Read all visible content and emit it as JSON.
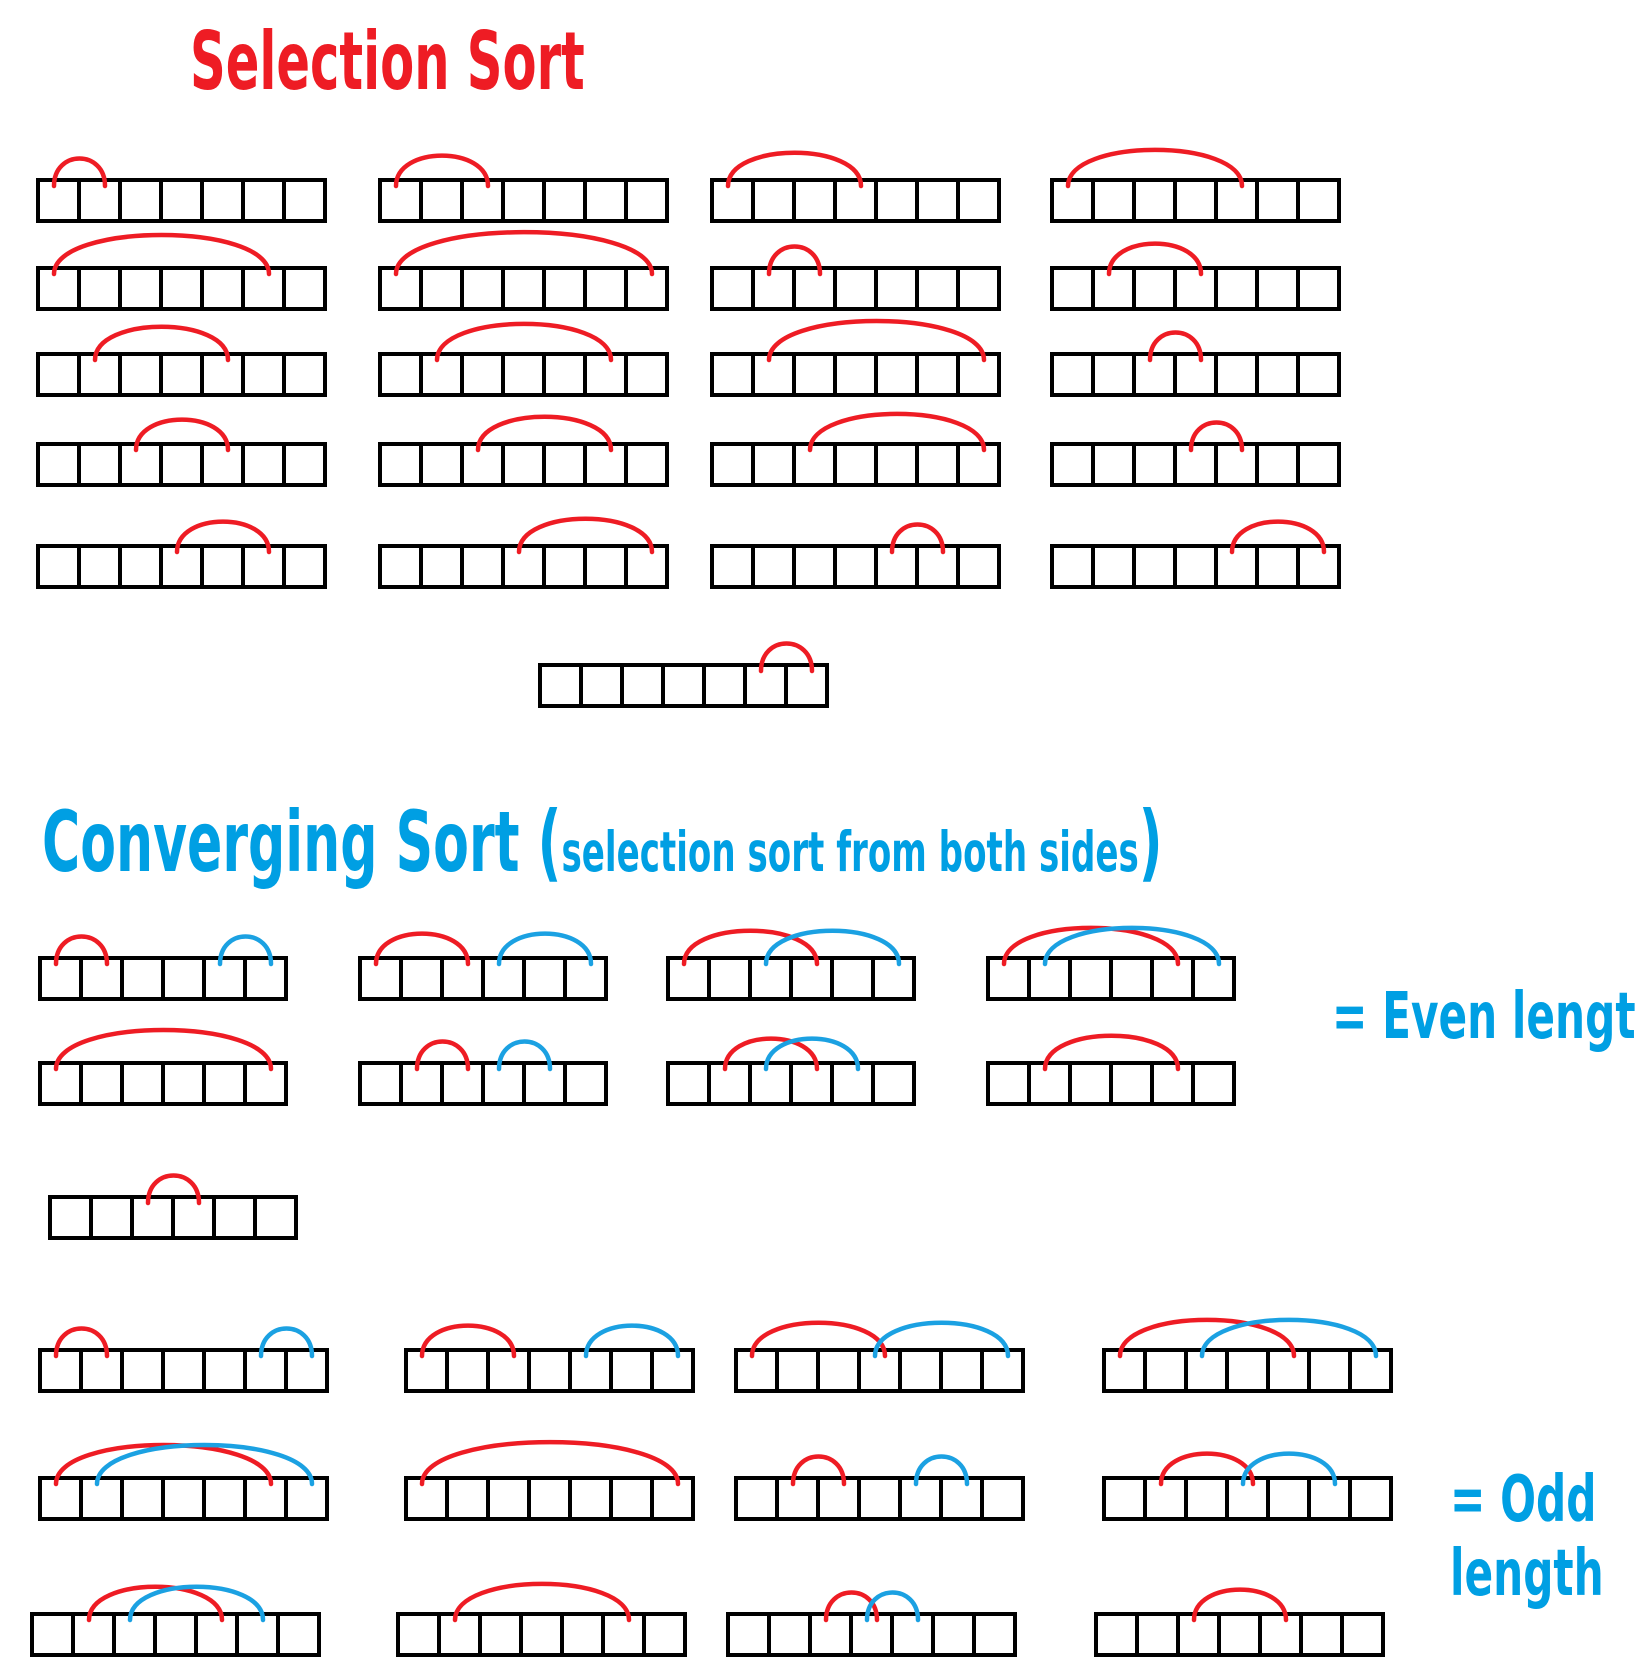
{
  "selection_sort": {
    "title": "Selection Sort",
    "steps": [
      [
        0,
        1
      ],
      [
        0,
        2
      ],
      [
        0,
        3
      ],
      [
        0,
        4
      ],
      [
        0,
        5
      ],
      [
        0,
        6
      ],
      [
        1,
        2
      ],
      [
        1,
        3
      ],
      [
        1,
        4
      ],
      [
        1,
        5
      ],
      [
        1,
        6
      ],
      [
        2,
        3
      ],
      [
        2,
        4
      ],
      [
        2,
        5
      ],
      [
        2,
        6
      ],
      [
        3,
        4
      ],
      [
        3,
        5
      ],
      [
        3,
        6
      ],
      [
        4,
        5
      ],
      [
        4,
        6
      ],
      [
        5,
        6
      ]
    ]
  },
  "converging_sort": {
    "title": "Converging Sort",
    "subtitle_open": "(",
    "subtitle": "selection sort from both sides",
    "subtitle_close": ")",
    "even": {
      "legend": "= Even length",
      "steps": [
        {
          "red": [
            0,
            1
          ],
          "blue": [
            4,
            5
          ]
        },
        {
          "red": [
            0,
            2
          ],
          "blue": [
            3,
            5
          ]
        },
        {
          "red": [
            0,
            3
          ],
          "blue": [
            2,
            5
          ]
        },
        {
          "red": [
            0,
            4
          ],
          "blue": [
            1,
            5
          ]
        },
        {
          "red": [
            0,
            5
          ],
          "blue": null
        },
        {
          "red": [
            1,
            2
          ],
          "blue": [
            3,
            4
          ]
        },
        {
          "red": [
            1,
            3
          ],
          "blue": [
            2,
            4
          ]
        },
        {
          "red": [
            1,
            4
          ],
          "blue": null
        },
        {
          "red": [
            2,
            3
          ],
          "blue": null
        }
      ]
    },
    "odd": {
      "legend_line1": "= Odd",
      "legend_line2": "length",
      "steps": [
        {
          "red": [
            0,
            1
          ],
          "blue": [
            5,
            6
          ]
        },
        {
          "red": [
            0,
            2
          ],
          "blue": [
            4,
            6
          ]
        },
        {
          "red": [
            0,
            3
          ],
          "blue": [
            3,
            6
          ]
        },
        {
          "red": [
            0,
            4
          ],
          "blue": [
            2,
            6
          ]
        },
        {
          "red": [
            0,
            5
          ],
          "blue": [
            1,
            6
          ]
        },
        {
          "red": [
            0,
            6
          ],
          "blue": null
        },
        {
          "red": [
            1,
            2
          ],
          "blue": [
            4,
            5
          ]
        },
        {
          "red": [
            1,
            3
          ],
          "blue": [
            3,
            5
          ]
        },
        {
          "red": [
            1,
            4
          ],
          "blue": [
            2,
            5
          ]
        },
        {
          "red": [
            1,
            5
          ],
          "blue": null
        },
        {
          "red": [
            2,
            3
          ],
          "blue": [
            3,
            4
          ]
        },
        {
          "red": [
            2,
            4
          ],
          "blue": null
        }
      ]
    }
  },
  "colors": {
    "red": "#ee1c24",
    "blue": "#1ba1e2",
    "box": "#000000"
  }
}
